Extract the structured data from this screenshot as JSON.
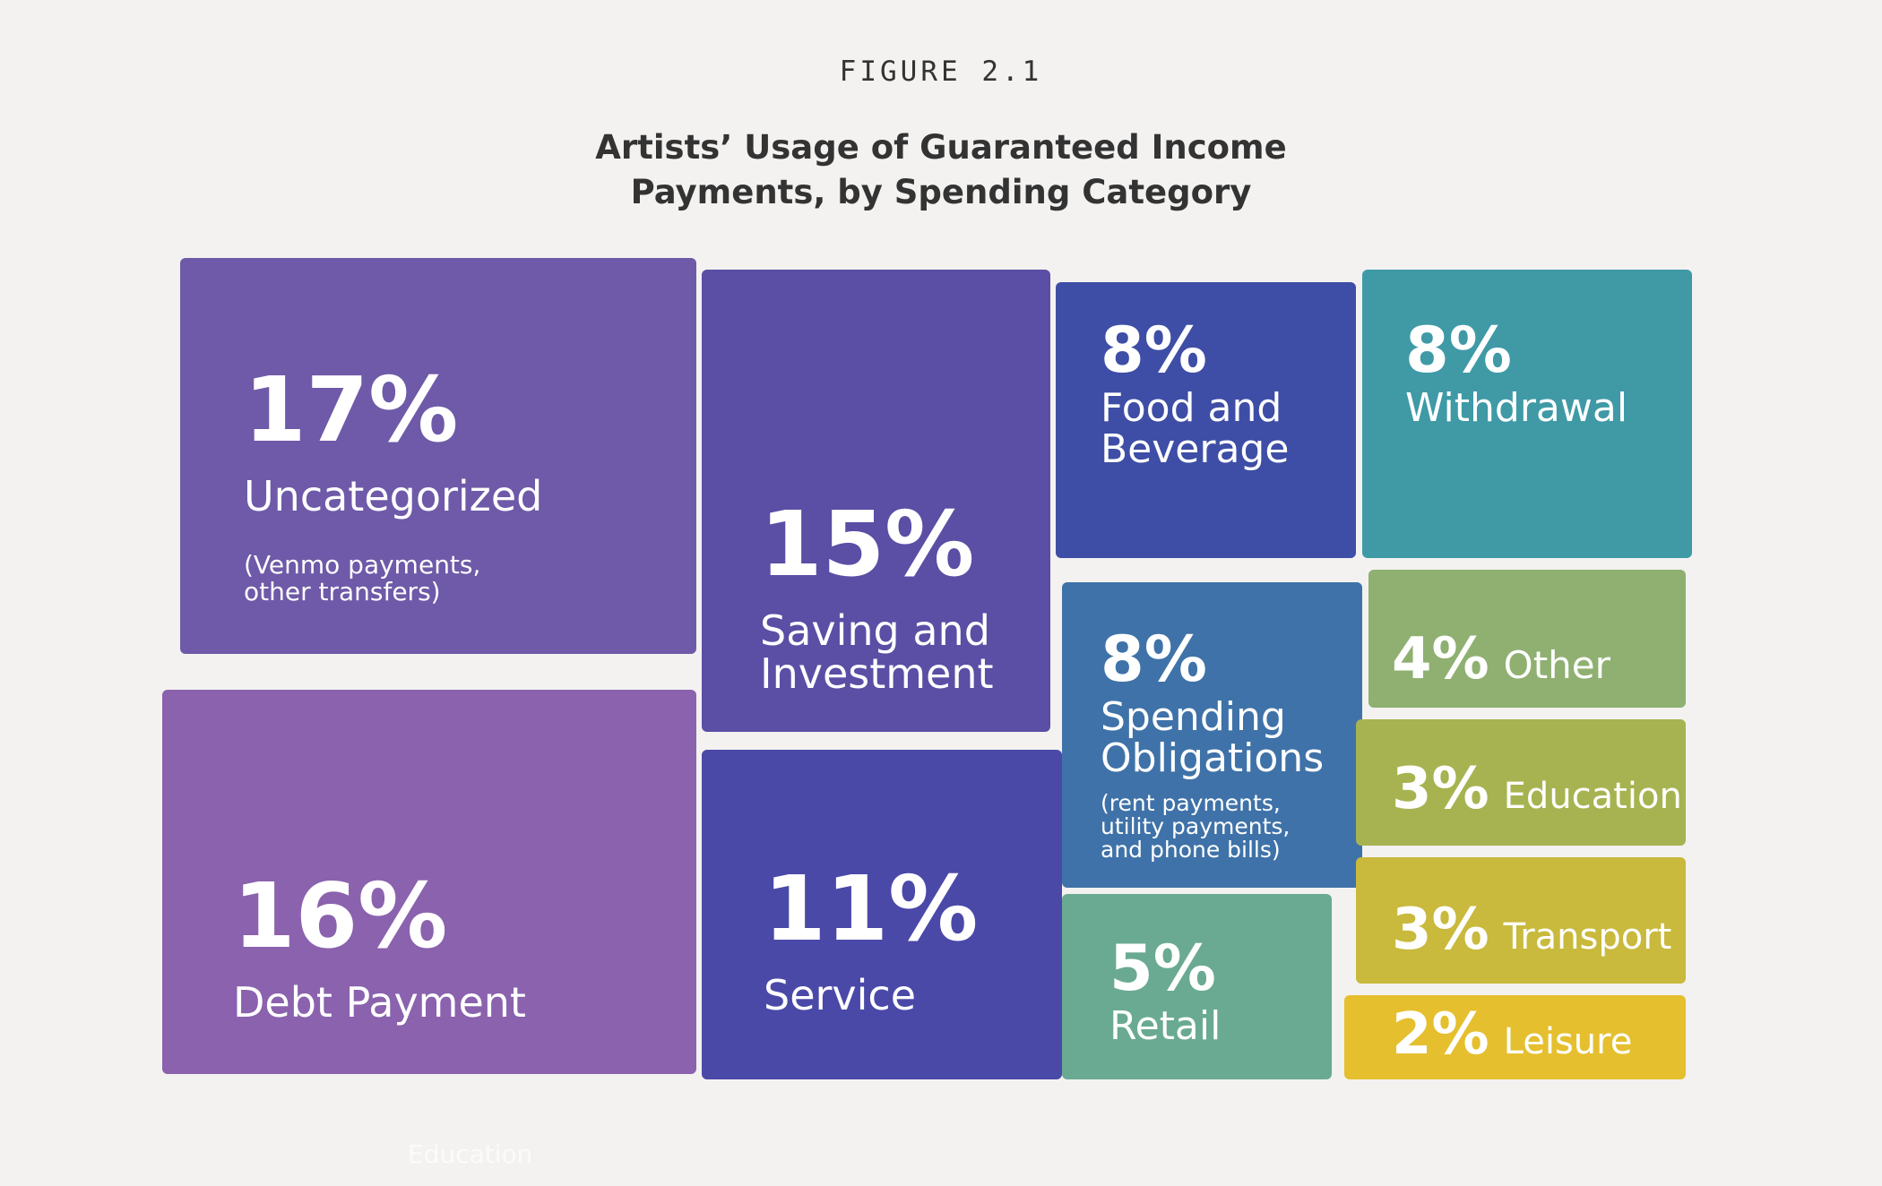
{
  "chart_data": {
    "type": "treemap",
    "figure_label": "FIGURE 2.1",
    "title": "Artists’ Usage of Guaranteed Income Payments, by Spending Category",
    "footnote": "Education",
    "categories": [
      "Uncategorized",
      "Debt Payment",
      "Saving and Investment",
      "Service",
      "Food and Beverage",
      "Spending Obligations",
      "Retail",
      "Withdrawal",
      "Other",
      "Education",
      "Transport",
      "Leisure"
    ],
    "notes": [
      "(Venmo payments, other transfers)",
      null,
      null,
      null,
      null,
      "(rent payments, utility payments, and phone bills)",
      null,
      null,
      null,
      null,
      null,
      null
    ],
    "values": [
      17,
      16,
      15,
      11,
      8,
      8,
      5,
      8,
      4,
      3,
      3,
      2
    ],
    "value_labels": [
      "17%",
      "16%",
      "15%",
      "11%",
      "8%",
      "8%",
      "5%",
      "8%",
      "4%",
      "3%",
      "3%",
      "2%"
    ],
    "colors": [
      "#6e5aa8",
      "#8a62ad",
      "#5a4ea5",
      "#4a49a8",
      "#3e4ea6",
      "#3f72a8",
      "#6aaa92",
      "#3f9aa6",
      "#8fb071",
      "#a7b350",
      "#c9b93c",
      "#e5bf2e"
    ]
  }
}
